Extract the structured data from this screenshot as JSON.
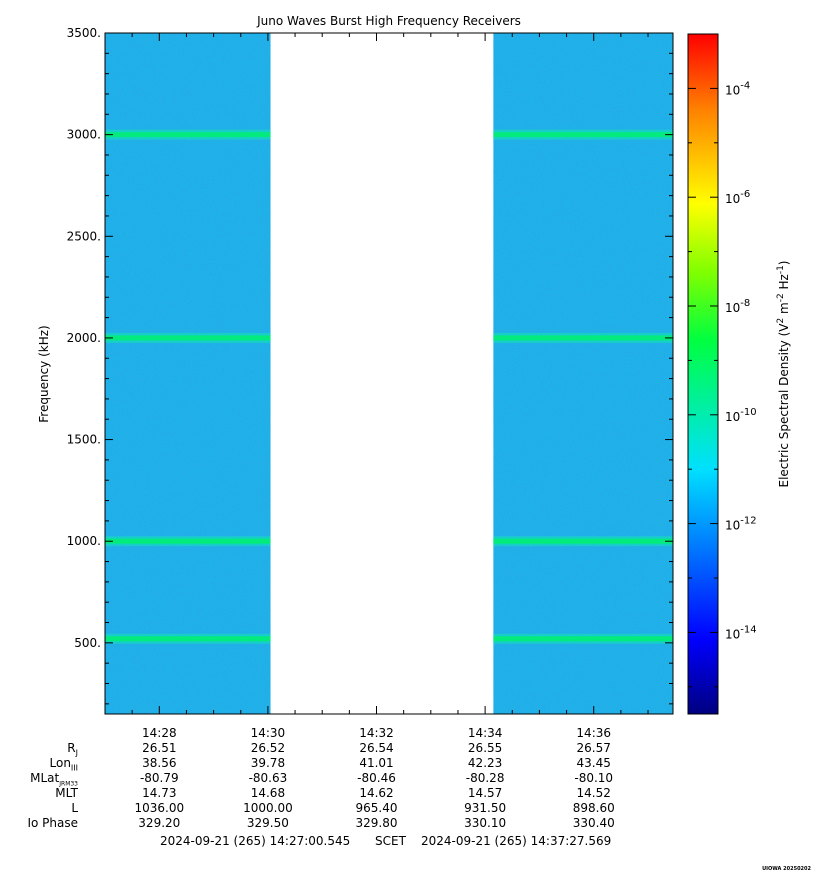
{
  "chart_data": {
    "type": "heatmap",
    "title": "Juno Waves Burst High Frequency Receivers",
    "ylabel": "Frequency (kHz)",
    "colorbar_label_html": "Electric Spectral Density (V<tspan baseline-shift=\"super\" font-size=\"9\">2</tspan> m<tspan baseline-shift=\"super\" font-size=\"9\">-2</tspan> Hz<tspan baseline-shift=\"super\" font-size=\"9\">-1</tspan>)",
    "colorbar_label": "Electric Spectral Density (V2 m-2 Hz-1)",
    "ylim": [
      150,
      3500
    ],
    "y_ticks": [
      500,
      1000,
      1500,
      2000,
      2500,
      3000,
      3500
    ],
    "y_tick_labels": [
      "500.",
      "1000.",
      "1500.",
      "2000.",
      "2500.",
      "3000.",
      "3500."
    ],
    "x_ticks": [
      "14:28",
      "14:30",
      "14:32",
      "14:34",
      "14:36"
    ],
    "x_range_minutes": [
      27.0,
      37.46
    ],
    "x_tick_minutes": [
      28,
      30,
      32,
      34,
      36
    ],
    "data_gap_minutes": [
      30.05,
      34.15
    ],
    "bright_bands_khz": [
      3000,
      2000,
      1000,
      520
    ],
    "colorbar": {
      "log_min": -15.5,
      "log_max": -3.0,
      "tick_exponents": [
        -4,
        -6,
        -8,
        -10,
        -12,
        -14
      ],
      "tick_labels": [
        "10-4",
        "10-6",
        "10-8",
        "10-10",
        "10-12",
        "10-14"
      ]
    }
  },
  "ephemeris": {
    "rows": [
      {
        "label": "Rj",
        "values": [
          "26.51",
          "26.52",
          "26.54",
          "26.55",
          "26.57"
        ]
      },
      {
        "label": "LonIII",
        "values": [
          "38.56",
          "39.78",
          "41.01",
          "42.23",
          "43.45"
        ]
      },
      {
        "label": "MLatJRM33",
        "values": [
          "-80.79",
          "-80.63",
          "-80.46",
          "-80.28",
          "-80.10"
        ]
      },
      {
        "label": "MLT",
        "values": [
          "14.73",
          "14.68",
          "14.62",
          "14.57",
          "14.52"
        ]
      },
      {
        "label": "L",
        "values": [
          "1036.00",
          "1000.00",
          "965.40",
          "931.50",
          "898.60"
        ]
      },
      {
        "label": "Io Phase",
        "values": [
          "329.20",
          "329.50",
          "329.80",
          "330.10",
          "330.40"
        ]
      }
    ]
  },
  "footer": {
    "start_time": "2024-09-21 (265) 14:27:00.545",
    "scet": "SCET",
    "end_time": "2024-09-21 (265) 14:37:27.569"
  },
  "stamp": "UIOWA 20250202",
  "colors": {
    "background": "#ffffff",
    "axis": "#000000"
  }
}
